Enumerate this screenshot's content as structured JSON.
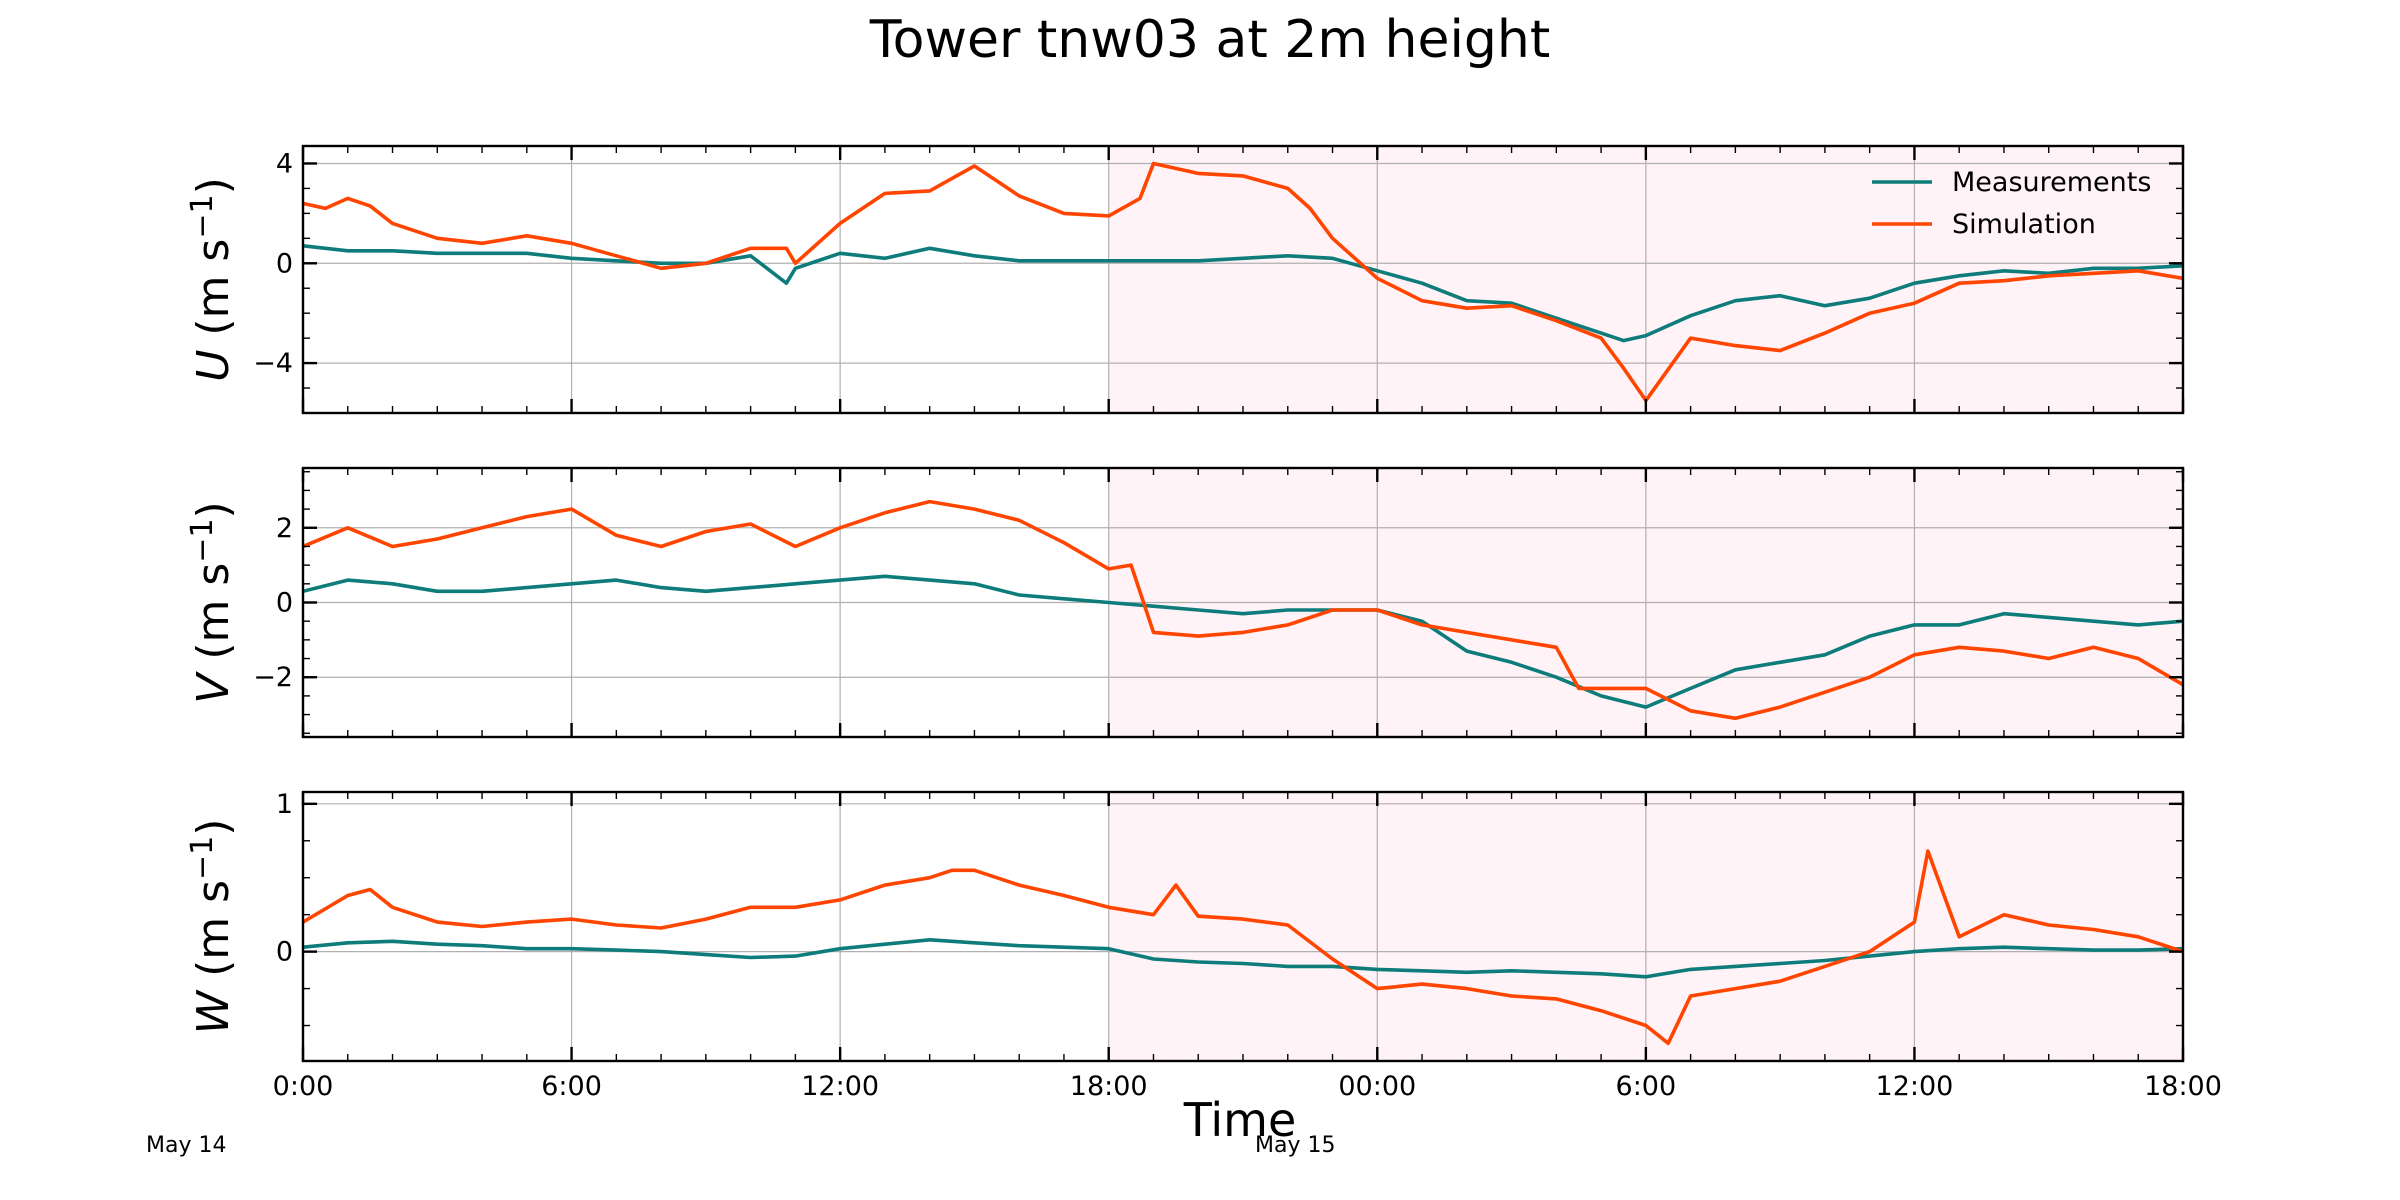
{
  "chart_data": {
    "type": "line",
    "title": "Tower tnw03 at 2m height",
    "xlabel": "Time",
    "x_range": [
      "May 14 00:00",
      "May 15 18:00"
    ],
    "x_ticks": [
      {
        "hour": 0,
        "label": "0:00"
      },
      {
        "hour": 6,
        "label": "6:00"
      },
      {
        "hour": 12,
        "label": "12:00"
      },
      {
        "hour": 18,
        "label": "18:00"
      },
      {
        "hour": 24,
        "label": "00:00"
      },
      {
        "hour": 30,
        "label": "6:00"
      },
      {
        "hour": 36,
        "label": "12:00"
      },
      {
        "hour": 42,
        "label": "18:00"
      }
    ],
    "date_labels": [
      {
        "hour": 0,
        "label": "May 14"
      },
      {
        "hour": 24,
        "label": "May 15"
      }
    ],
    "shaded_interval_hours": [
      18,
      42
    ],
    "shade_color": "#fff3f7",
    "grid": true,
    "legend": {
      "position": "top-right",
      "panel": 0
    },
    "series_styles": [
      {
        "name": "Measurements",
        "color": "#0e7c7b"
      },
      {
        "name": "Simulation",
        "color": "#ff4500"
      }
    ],
    "panels": [
      {
        "ylabel_var": "U",
        "ylabel_unit": " (m s",
        "ylabel_exp": "−1",
        "ylabel_close": ")",
        "ylim": [
          -6,
          4.7
        ],
        "yticks": [
          {
            "v": -4,
            "label": "−4"
          },
          {
            "v": 0,
            "label": "0"
          },
          {
            "v": 4,
            "label": "4"
          }
        ],
        "minor_step": 1,
        "series": [
          {
            "name": "Measurements",
            "hours": [
              0,
              1,
              2,
              3,
              4,
              5,
              6,
              7,
              8,
              9,
              10,
              10.8,
              11,
              12,
              13,
              14,
              15,
              16,
              17,
              18,
              19,
              20,
              21,
              22,
              23,
              24,
              25,
              26,
              27,
              28,
              29,
              29.5,
              30,
              31,
              32,
              33,
              34,
              35,
              36,
              37,
              38,
              39,
              40,
              41,
              42
            ],
            "values": [
              0.7,
              0.5,
              0.5,
              0.4,
              0.4,
              0.4,
              0.2,
              0.1,
              0,
              0,
              0.3,
              -0.8,
              -0.2,
              0.4,
              0.2,
              0.6,
              0.3,
              0.1,
              0.1,
              0.1,
              0.1,
              0.1,
              0.2,
              0.3,
              0.2,
              -0.3,
              -0.8,
              -1.5,
              -1.6,
              -2.2,
              -2.8,
              -3.1,
              -2.9,
              -2.1,
              -1.5,
              -1.3,
              -1.7,
              -1.4,
              -0.8,
              -0.5,
              -0.3,
              -0.4,
              -0.2,
              -0.2,
              -0.1
            ]
          },
          {
            "name": "Simulation",
            "hours": [
              0,
              0.5,
              1,
              1.5,
              2,
              3,
              4,
              5,
              6,
              7,
              8,
              9,
              10,
              10.8,
              11,
              12,
              13,
              14,
              14.5,
              15,
              15.5,
              16,
              17,
              18,
              18.7,
              19,
              20,
              21,
              22,
              22.5,
              23,
              24,
              25,
              26,
              27,
              28,
              29,
              29.5,
              30,
              31,
              32,
              33,
              34,
              35,
              36,
              37,
              38,
              39,
              40,
              41,
              42
            ],
            "values": [
              2.4,
              2.2,
              2.6,
              2.3,
              1.6,
              1.0,
              0.8,
              1.1,
              0.8,
              0.3,
              -0.2,
              0,
              0.6,
              0.6,
              0,
              1.6,
              2.8,
              2.9,
              3.4,
              3.9,
              3.3,
              2.7,
              2.0,
              1.9,
              2.6,
              4.0,
              3.6,
              3.5,
              3.0,
              2.2,
              1.0,
              -0.6,
              -1.5,
              -1.8,
              -1.7,
              -2.3,
              -3.0,
              -4.2,
              -5.5,
              -3.0,
              -3.3,
              -3.5,
              -2.8,
              -2.0,
              -1.6,
              -0.8,
              -0.7,
              -0.5,
              -0.4,
              -0.3,
              -0.6
            ]
          }
        ]
      },
      {
        "ylabel_var": "V",
        "ylabel_unit": " (m s",
        "ylabel_exp": "−1",
        "ylabel_close": ")",
        "ylim": [
          -3.6,
          3.6
        ],
        "yticks": [
          {
            "v": -2,
            "label": "−2"
          },
          {
            "v": 0,
            "label": "0"
          },
          {
            "v": 2,
            "label": "2"
          }
        ],
        "minor_step": 0.5,
        "series": [
          {
            "name": "Measurements",
            "hours": [
              0,
              1,
              2,
              3,
              4,
              5,
              6,
              7,
              8,
              9,
              10,
              11,
              12,
              13,
              14,
              15,
              16,
              17,
              18,
              19,
              20,
              21,
              22,
              23,
              24,
              25,
              26,
              27,
              28,
              29,
              30,
              31,
              32,
              33,
              34,
              35,
              36,
              37,
              38,
              39,
              40,
              41,
              42
            ],
            "values": [
              0.3,
              0.6,
              0.5,
              0.3,
              0.3,
              0.4,
              0.5,
              0.6,
              0.4,
              0.3,
              0.4,
              0.5,
              0.6,
              0.7,
              0.6,
              0.5,
              0.2,
              0.1,
              0,
              -0.1,
              -0.2,
              -0.3,
              -0.2,
              -0.2,
              -0.2,
              -0.5,
              -1.3,
              -1.6,
              -2.0,
              -2.5,
              -2.8,
              -2.3,
              -1.8,
              -1.6,
              -1.4,
              -0.9,
              -0.6,
              -0.6,
              -0.3,
              -0.4,
              -0.5,
              -0.6,
              -0.5
            ]
          },
          {
            "name": "Simulation",
            "hours": [
              0,
              1,
              2,
              3,
              4,
              5,
              6,
              7,
              8,
              9,
              10,
              11,
              12,
              13,
              14,
              15,
              16,
              17,
              18,
              18.5,
              19,
              20,
              21,
              22,
              23,
              24,
              25,
              26,
              27,
              28,
              28.5,
              29,
              30,
              31,
              32,
              33,
              34,
              35,
              36,
              37,
              38,
              39,
              40,
              41,
              42
            ],
            "values": [
              1.5,
              2.0,
              1.5,
              1.7,
              2.0,
              2.3,
              2.5,
              1.8,
              1.5,
              1.9,
              2.1,
              1.5,
              2.0,
              2.4,
              2.7,
              2.5,
              2.2,
              1.6,
              0.9,
              1.0,
              -0.8,
              -0.9,
              -0.8,
              -0.6,
              -0.2,
              -0.2,
              -0.6,
              -0.8,
              -1.0,
              -1.2,
              -2.3,
              -2.3,
              -2.3,
              -2.9,
              -3.1,
              -2.8,
              -2.4,
              -2.0,
              -1.4,
              -1.2,
              -1.3,
              -1.5,
              -1.2,
              -1.5,
              -2.2
            ]
          }
        ]
      },
      {
        "ylabel_var": "W",
        "ylabel_unit": " (m s",
        "ylabel_exp": "−1",
        "ylabel_close": ")",
        "ylim": [
          -0.74,
          1.08
        ],
        "yticks": [
          {
            "v": 0,
            "label": "0"
          },
          {
            "v": 1,
            "label": "1"
          }
        ],
        "minor_step": 0.25,
        "series": [
          {
            "name": "Measurements",
            "hours": [
              0,
              1,
              2,
              3,
              4,
              5,
              6,
              7,
              8,
              9,
              10,
              11,
              12,
              13,
              14,
              15,
              16,
              17,
              18,
              19,
              20,
              21,
              22,
              23,
              24,
              25,
              26,
              27,
              28,
              29,
              30,
              31,
              32,
              33,
              34,
              35,
              36,
              37,
              38,
              39,
              40,
              41,
              42
            ],
            "values": [
              0.03,
              0.06,
              0.07,
              0.05,
              0.04,
              0.02,
              0.02,
              0.01,
              0,
              -0.02,
              -0.04,
              -0.03,
              0.02,
              0.05,
              0.08,
              0.06,
              0.04,
              0.03,
              0.02,
              -0.05,
              -0.07,
              -0.08,
              -0.1,
              -0.1,
              -0.12,
              -0.13,
              -0.14,
              -0.13,
              -0.14,
              -0.15,
              -0.17,
              -0.12,
              -0.1,
              -0.08,
              -0.06,
              -0.03,
              0,
              0.02,
              0.03,
              0.02,
              0.01,
              0.01,
              0.02
            ]
          },
          {
            "name": "Simulation",
            "hours": [
              0,
              1,
              1.5,
              2,
              3,
              4,
              5,
              6,
              7,
              8,
              9,
              10,
              11,
              12,
              13,
              14,
              14.5,
              15,
              16,
              17,
              18,
              19,
              19.5,
              20,
              21,
              22,
              23,
              24,
              25,
              26,
              27,
              28,
              29,
              30,
              30.5,
              31,
              32,
              33,
              34,
              35,
              36,
              36.3,
              37,
              38,
              39,
              40,
              41,
              42
            ],
            "values": [
              0.2,
              0.38,
              0.42,
              0.3,
              0.2,
              0.17,
              0.2,
              0.22,
              0.18,
              0.16,
              0.22,
              0.3,
              0.3,
              0.35,
              0.45,
              0.5,
              0.55,
              0.55,
              0.45,
              0.38,
              0.3,
              0.25,
              0.45,
              0.24,
              0.22,
              0.18,
              -0.05,
              -0.25,
              -0.22,
              -0.25,
              -0.3,
              -0.32,
              -0.4,
              -0.5,
              -0.62,
              -0.3,
              -0.25,
              -0.2,
              -0.1,
              0,
              0.2,
              0.68,
              0.1,
              0.25,
              0.18,
              0.15,
              0.1,
              0
            ]
          }
        ]
      }
    ]
  }
}
